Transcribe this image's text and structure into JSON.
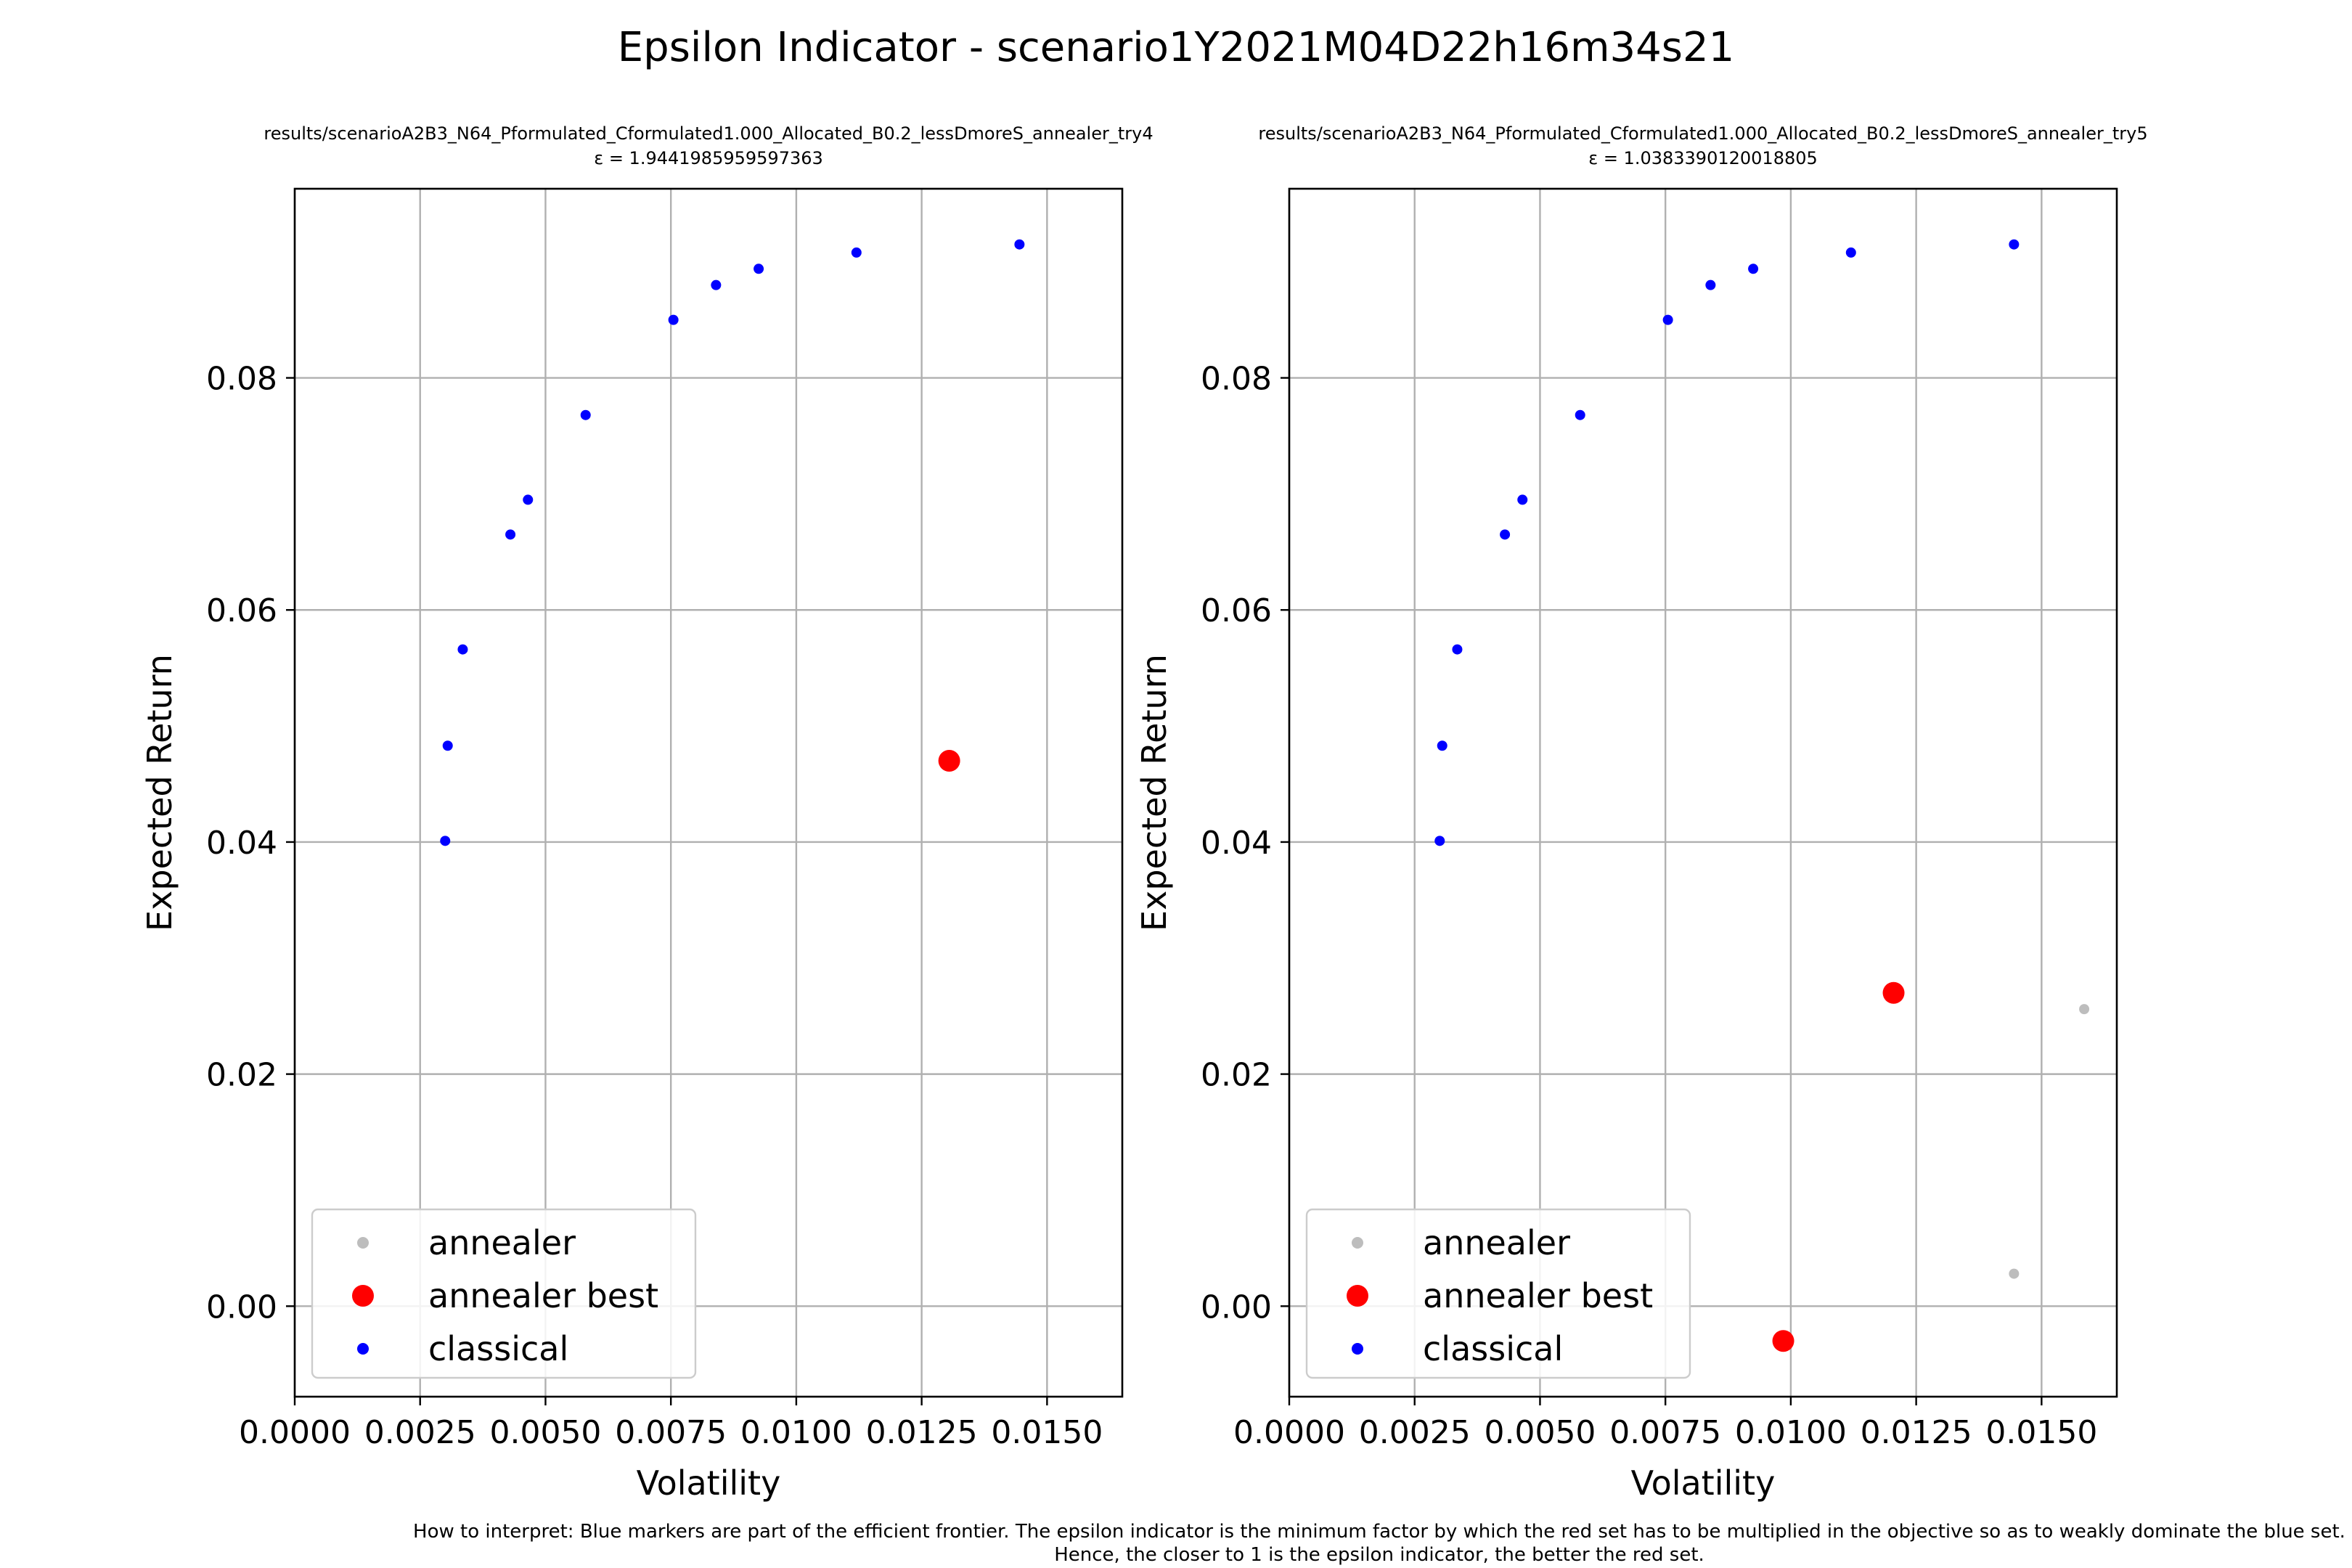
{
  "figure": {
    "suptitle": "Epsilon Indicator - scenario1Y2021M04D22h16m34s21",
    "footnote_line1": "How to interpret: Blue markers are part of the efficient frontier. The epsilon indicator is the minimum factor by which the red set has to be multiplied in the objective so as to weakly dominate the blue set.",
    "footnote_line2": "Hence, the closer to 1 is the epsilon indicator, the better the red set."
  },
  "colors": {
    "annealer": "#bdbdbd",
    "annealer_best": "#ff0000",
    "classical": "#0000ff",
    "grid": "#b0b0b0"
  },
  "chart_data": [
    {
      "type": "scatter",
      "title": "results/scenarioA2B3_N64_Pformulated_Cformulated1.000_Allocated_B0.2_lessDmoreS_annealer_try4",
      "subtitle": "ε = 1.9441985959597363",
      "xlabel": "Volatility",
      "ylabel": "Expected Return",
      "xlim": [
        0.0,
        0.0165
      ],
      "ylim": [
        -0.0078,
        0.0963
      ],
      "xticks": [
        "0.0000",
        "0.0025",
        "0.0050",
        "0.0075",
        "0.0100",
        "0.0125",
        "0.0150"
      ],
      "xtick_values": [
        0.0,
        0.0025,
        0.005,
        0.0075,
        0.01,
        0.0125,
        0.015
      ],
      "yticks": [
        "0.00",
        "0.02",
        "0.04",
        "0.06",
        "0.08"
      ],
      "ytick_values": [
        0.0,
        0.02,
        0.04,
        0.06,
        0.08
      ],
      "grid": true,
      "legend_position": "lower-left",
      "series": [
        {
          "name": "annealer",
          "x": [],
          "y": []
        },
        {
          "name": "annealer best",
          "x": [
            0.01305
          ],
          "y": [
            0.047
          ]
        },
        {
          "name": "classical",
          "x": [
            0.003,
            0.00305,
            0.00335,
            0.0043,
            0.00465,
            0.0058,
            0.00755,
            0.0084,
            0.00925,
            0.0112,
            0.01445
          ],
          "y": [
            0.0401,
            0.0483,
            0.0566,
            0.0665,
            0.0695,
            0.0768,
            0.085,
            0.088,
            0.0894,
            0.0908,
            0.0915
          ]
        }
      ]
    },
    {
      "type": "scatter",
      "title": "results/scenarioA2B3_N64_Pformulated_Cformulated1.000_Allocated_B0.2_lessDmoreS_annealer_try5",
      "subtitle": "ε = 1.0383390120018805",
      "xlabel": "Volatility",
      "ylabel": "Expected Return",
      "xlim": [
        0.0,
        0.0165
      ],
      "ylim": [
        -0.0078,
        0.0963
      ],
      "xticks": [
        "0.0000",
        "0.0025",
        "0.0050",
        "0.0075",
        "0.0100",
        "0.0125",
        "0.0150"
      ],
      "xtick_values": [
        0.0,
        0.0025,
        0.005,
        0.0075,
        0.01,
        0.0125,
        0.015
      ],
      "yticks": [
        "0.00",
        "0.02",
        "0.04",
        "0.06",
        "0.08"
      ],
      "ytick_values": [
        0.0,
        0.02,
        0.04,
        0.06,
        0.08
      ],
      "grid": true,
      "legend_position": "lower-left",
      "series": [
        {
          "name": "annealer",
          "x": [
            0.01445,
            0.01585
          ],
          "y": [
            0.0028,
            0.0256
          ]
        },
        {
          "name": "annealer best",
          "x": [
            0.00985,
            0.01205
          ],
          "y": [
            -0.003,
            0.027
          ]
        },
        {
          "name": "classical",
          "x": [
            0.003,
            0.00305,
            0.00335,
            0.0043,
            0.00465,
            0.0058,
            0.00755,
            0.0084,
            0.00925,
            0.0112,
            0.01445
          ],
          "y": [
            0.0401,
            0.0483,
            0.0566,
            0.0665,
            0.0695,
            0.0768,
            0.085,
            0.088,
            0.0894,
            0.0908,
            0.0915
          ]
        }
      ]
    }
  ]
}
